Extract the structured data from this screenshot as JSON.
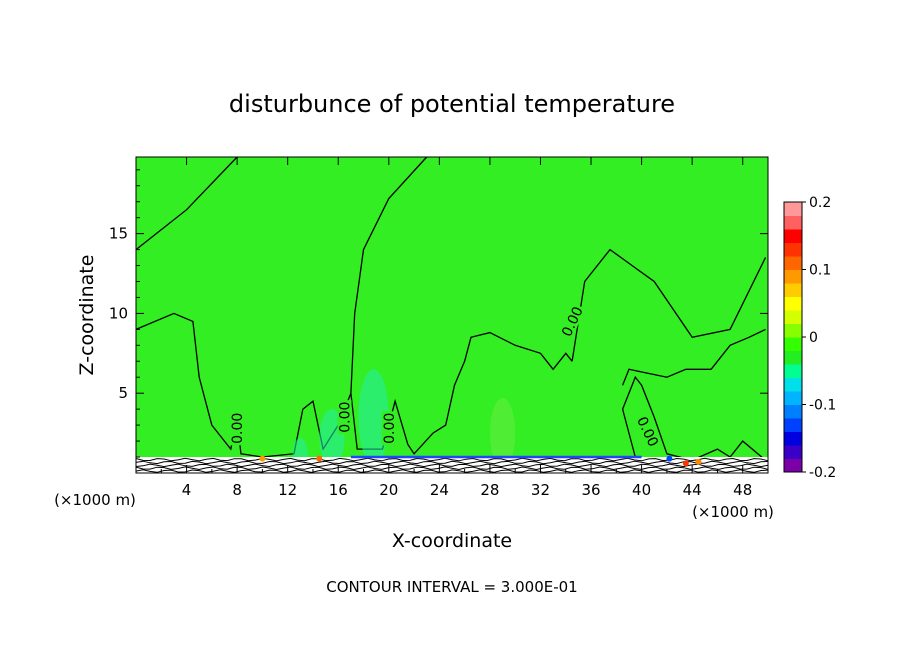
{
  "chart_data": {
    "type": "heatmap",
    "title": "disturbunce of potential temperature",
    "xlabel": "X-coordinate",
    "ylabel": "Z-coordinate",
    "x_unit_left": "(×1000 m)",
    "x_unit_right": "(×1000 m)",
    "footer": "CONTOUR INTERVAL = 3.000E-01",
    "xlim": [
      0,
      50
    ],
    "ylim": [
      0,
      19.8
    ],
    "x_ticks": [
      "4",
      "8",
      "12",
      "16",
      "20",
      "24",
      "28",
      "32",
      "36",
      "40",
      "44",
      "48"
    ],
    "x_tick_values": [
      4,
      8,
      12,
      16,
      20,
      24,
      28,
      32,
      36,
      40,
      44,
      48
    ],
    "y_ticks": [
      "5",
      "10",
      "15"
    ],
    "y_tick_values": [
      5,
      10,
      15
    ],
    "contour_labels": [
      {
        "text": "0.00",
        "x": 8.0,
        "z": 2.8,
        "rotate": -90
      },
      {
        "text": "0.00",
        "x": 16.5,
        "z": 3.5,
        "rotate": -90
      },
      {
        "text": "0.00",
        "x": 20.0,
        "z": 2.8,
        "rotate": -90
      },
      {
        "text": "0.00",
        "x": 34.5,
        "z": 9.5,
        "rotate": -65
      },
      {
        "text": "0.00",
        "x": 40.5,
        "z": 2.6,
        "rotate": 65
      }
    ],
    "zero_contour_upper": [
      [
        0,
        14
      ],
      [
        4,
        16.5
      ],
      [
        8,
        19.8
      ]
    ],
    "zero_contour_mid": [
      [
        23,
        19.8
      ],
      [
        20,
        17.2
      ],
      [
        18,
        14
      ],
      [
        17.3,
        10
      ],
      [
        17,
        5
      ]
    ],
    "zero_contour_right": [
      [
        49.8,
        13.5
      ],
      [
        47,
        9
      ],
      [
        44,
        8.5
      ],
      [
        41,
        12
      ],
      [
        37.5,
        14
      ],
      [
        35.5,
        12
      ],
      [
        34.5,
        7
      ]
    ],
    "colorbar": {
      "ticks": [
        "0.2",
        "0.1",
        "0",
        "-0.1",
        "-0.2"
      ],
      "tick_values": [
        0.2,
        0.1,
        0,
        -0.1,
        -0.2
      ],
      "range": [
        -0.2,
        0.2
      ],
      "colors": [
        "#7b00a8",
        "#3b00c8",
        "#0000e0",
        "#0040ff",
        "#0080ff",
        "#00b4ff",
        "#00e0e8",
        "#00ff90",
        "#22ee22",
        "#33ff00",
        "#88ff00",
        "#d4ff00",
        "#ffff00",
        "#ffcc00",
        "#ff9900",
        "#ff6600",
        "#ff3300",
        "#ff0000",
        "#ff6060",
        "#ff9999"
      ]
    },
    "field_color": "#33ee22"
  }
}
